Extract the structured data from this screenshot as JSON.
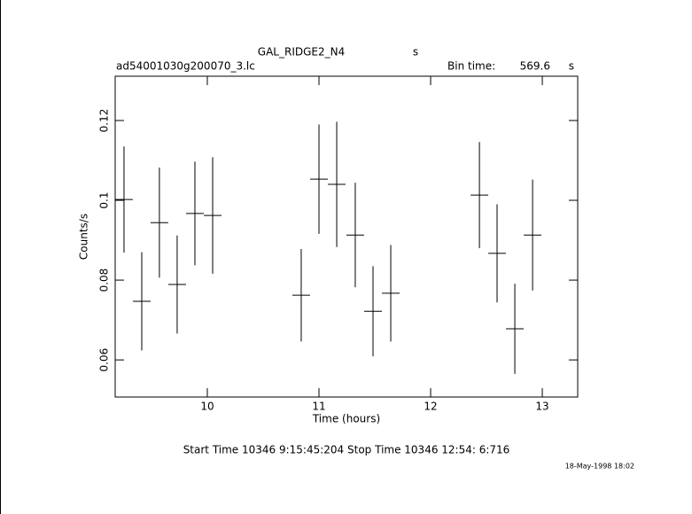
{
  "chart_data": {
    "type": "errorbar",
    "title": "GAL_RIDGE2_N4",
    "title_unit": "s",
    "file_name": "ad54001030g200070_3.lc",
    "bin_time_label": "Bin time:",
    "bin_time": 569.6,
    "bin_time_unit": "s",
    "xlabel": "Time (hours)",
    "ylabel": "Counts/s",
    "footer": "Start Time 10346  9:15:45:204    Stop Time 10346 12:54: 6:716",
    "date_stamp": "18-May-1998 18:02",
    "x": [
      9.254,
      9.413,
      9.571,
      9.73,
      9.889,
      10.048,
      10.841,
      11.0,
      11.159,
      11.325,
      11.484,
      11.643,
      12.437,
      12.595,
      12.754,
      12.913
    ],
    "values": [
      0.1002,
      0.0747,
      0.0944,
      0.0789,
      0.0967,
      0.0962,
      0.0762,
      0.1053,
      0.104,
      0.0913,
      0.0722,
      0.0767,
      0.1013,
      0.0867,
      0.0678,
      0.0913
    ],
    "errors": [
      0.0133,
      0.0123,
      0.0138,
      0.0123,
      0.013,
      0.0146,
      0.0116,
      0.0137,
      0.0157,
      0.0131,
      0.0113,
      0.0121,
      0.0133,
      0.0123,
      0.0113,
      0.0139
    ],
    "xerr": 0.079,
    "color": "#000000",
    "xlim": [
      9.175,
      13.317
    ],
    "ylim": [
      0.0507,
      0.1311
    ],
    "xticks": [
      10,
      11,
      12,
      13
    ],
    "yticks": [
      0.06,
      0.08,
      0.1,
      0.12
    ]
  }
}
